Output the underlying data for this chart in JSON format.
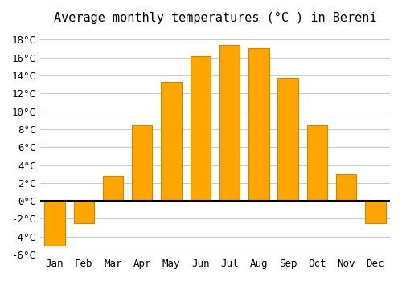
{
  "title": "Average monthly temperatures (°C ) in Bereni",
  "months": [
    "Jan",
    "Feb",
    "Mar",
    "Apr",
    "May",
    "Jun",
    "Jul",
    "Aug",
    "Sep",
    "Oct",
    "Nov",
    "Dec"
  ],
  "values": [
    -5.0,
    -2.5,
    2.8,
    8.4,
    13.3,
    16.1,
    17.4,
    17.0,
    13.7,
    8.4,
    3.0,
    -2.5
  ],
  "bar_color_positive": "#FFA500",
  "bar_color_negative": "#FFA500",
  "bar_edge_color": "#CC8800",
  "background_color": "#FFFFFF",
  "grid_color": "#CCCCCC",
  "ylim": [
    -6,
    19
  ],
  "yticks": [
    -6,
    -4,
    -2,
    0,
    2,
    4,
    6,
    8,
    10,
    12,
    14,
    16,
    18
  ],
  "title_fontsize": 11,
  "tick_fontsize": 9,
  "zero_line_color": "#000000"
}
